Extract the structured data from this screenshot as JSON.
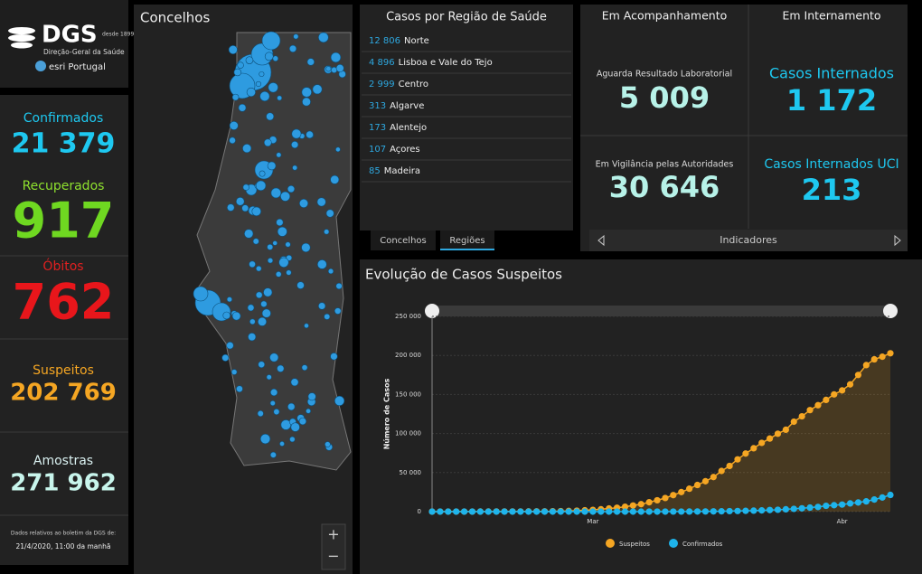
{
  "header": {
    "logo": "DGS",
    "since": "desde 1899",
    "subtitle": "Direção-Geral da Saúde",
    "partner": "esri Portugal"
  },
  "stats": [
    {
      "label": "Confirmados",
      "value": "21 379"
    },
    {
      "label": "Recuperados",
      "value": "917"
    },
    {
      "label": "Óbitos",
      "value": "762"
    },
    {
      "label": "Suspeitos",
      "value": "202 769"
    },
    {
      "label": "Amostras",
      "value": "271 962"
    }
  ],
  "footnote": {
    "text": "Dados relativos ao boletim da DGS de:",
    "date": "21/4/2020, 11:00 da manhã"
  },
  "map": {
    "title": "Concelhos",
    "zoom": [
      "+",
      "−"
    ]
  },
  "regions": {
    "title": "Casos por Região de Saúde",
    "rows": [
      {
        "value": "12 806",
        "name": "Norte"
      },
      {
        "value": "4 896",
        "name": "Lisboa e Vale do Tejo"
      },
      {
        "value": "2 999",
        "name": "Centro"
      },
      {
        "value": "313",
        "name": "Algarve"
      },
      {
        "value": "173",
        "name": "Alentejo"
      },
      {
        "value": "107",
        "name": "Açores"
      },
      {
        "value": "85",
        "name": "Madeira"
      }
    ],
    "tabs": [
      "Concelhos",
      "Regiões"
    ]
  },
  "indicators": {
    "headers": [
      "Em Acompanhamento",
      "Em Internamento"
    ],
    "cells": [
      {
        "label": "Aguarda Resultado Laboratorial",
        "value": "5 009"
      },
      {
        "label": "Em Vigilância pelas Autoridades",
        "value": "30 646"
      },
      {
        "label": "Casos Internados",
        "value": "1 172"
      },
      {
        "label": "Casos Internados UCI",
        "value": "213"
      }
    ],
    "footer": "Indicadores"
  },
  "chart_data": {
    "type": "line",
    "title": "Evolução de Casos Suspeitos",
    "y_label": "Número de Casos",
    "categories": [
      null,
      null,
      null,
      null,
      null,
      null,
      null,
      null,
      null,
      null,
      null,
      null,
      null,
      null,
      null,
      null,
      null,
      null,
      null,
      null,
      "Mar",
      null,
      null,
      null,
      null,
      null,
      null,
      null,
      null,
      null,
      null,
      null,
      null,
      null,
      null,
      null,
      null,
      null,
      null,
      null,
      null,
      null,
      null,
      null,
      null,
      null,
      null,
      null,
      null,
      null,
      null,
      "Abr",
      null,
      null,
      null,
      null,
      null,
      null
    ],
    "series": [
      {
        "name": "Suspeitos",
        "color": "#f5a623",
        "values": [
          25,
          51,
          59,
          70,
          85,
          101,
          117,
          147,
          167,
          186,
          210,
          240,
          281,
          339,
          375,
          471,
          637,
          856,
          1224,
          1704,
          2271,
          3014,
          4030,
          5011,
          6289,
          7854,
          9536,
          12006,
          14568,
          17412,
          21155,
          25032,
          29327,
          34102,
          38905,
          44270,
          52087,
          58485,
          66886,
          74370,
          81127,
          88062,
          93575,
          99730,
          104868,
          115158,
          122014,
          130012,
          136256,
          143055,
          150092,
          155234,
          162911,
          175000,
          187614,
          195000,
          198353,
          202769
        ]
      },
      {
        "name": "Confirmados",
        "color": "#1eb4ec",
        "values": [
          0,
          0,
          0,
          0,
          0,
          0,
          0,
          0,
          0,
          0,
          0,
          0,
          0,
          0,
          0,
          0,
          0,
          0,
          0,
          0,
          0,
          0,
          2,
          4,
          6,
          9,
          13,
          21,
          30,
          39,
          59,
          78,
          112,
          169,
          245,
          331,
          448,
          642,
          785,
          1020,
          1280,
          1600,
          2060,
          2362,
          2995,
          3544,
          4268,
          5170,
          5962,
          7443,
          8251,
          9034,
          10524,
          11730,
          13141,
          15472,
          18091,
          21379
        ]
      }
    ],
    "ylim": [
      0,
      250000
    ],
    "yticks": [
      0,
      {
        "value": 50000,
        "label": "50 000"
      },
      {
        "value": 100000,
        "label": "100 000"
      },
      {
        "value": 150000,
        "label": "150 000"
      },
      {
        "value": 200000,
        "label": "200 000"
      },
      {
        "value": 250000,
        "label": "250 000"
      }
    ],
    "grid": true,
    "legend": "bottom"
  }
}
